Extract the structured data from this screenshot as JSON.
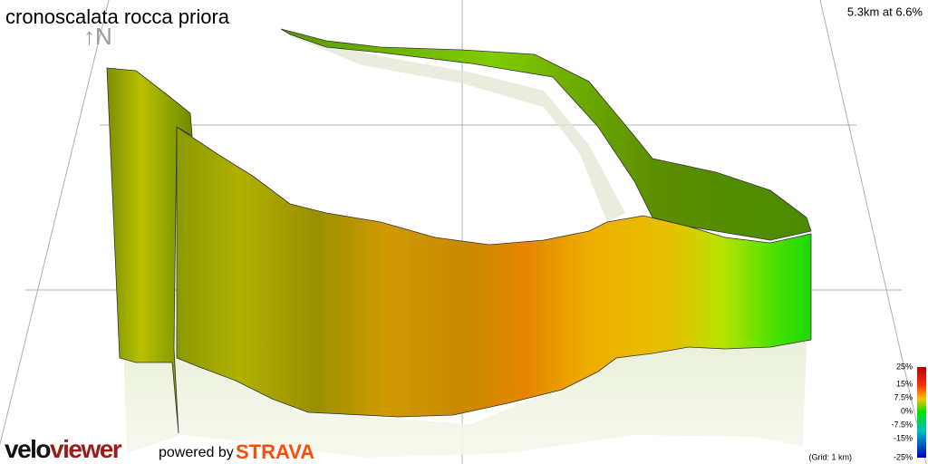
{
  "header": {
    "title": "cronoscalata rocca priora",
    "summary": "5.3km at 6.6%",
    "north": "↑N"
  },
  "legend": {
    "labels": [
      "25%",
      "15%",
      "7.5%",
      "0%",
      "-7.5%",
      "-15%",
      "-25%"
    ],
    "grid_note": "(Grid: 1 km)"
  },
  "footer": {
    "brand_a": "velo",
    "brand_b": "viewer",
    "powered": "powered by",
    "strava": "STRAVA"
  }
}
